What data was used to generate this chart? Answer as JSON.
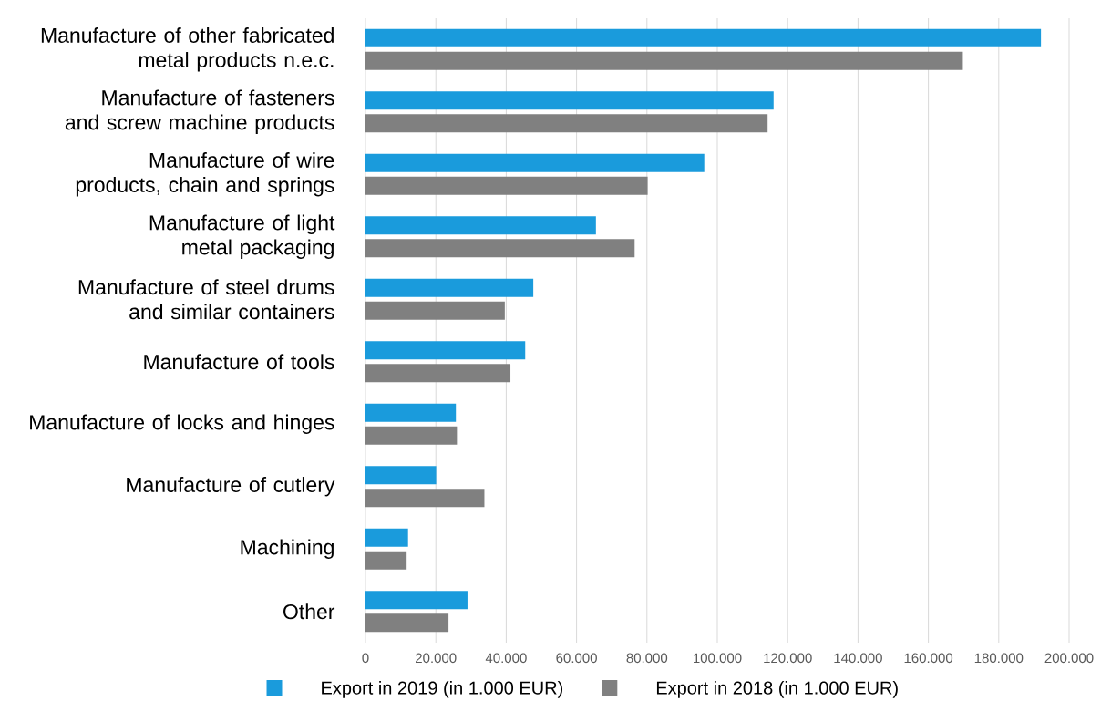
{
  "chart_data": {
    "type": "bar",
    "orientation": "horizontal",
    "categories": [
      "Manufacture of other fabricated metal products n.e.c.",
      "Manufacture of fasteners and screw machine products",
      "Manufacture of wire products, chain and springs",
      "Manufacture of light metal packaging",
      "Manufacture of steel drums and similar containers",
      "Manufacture of tools",
      "Manufacture of locks and hinges",
      "Manufacture of cutlery",
      "Machining",
      "Other"
    ],
    "series": [
      {
        "name": "Export in 2019 (in 1.000 EUR)",
        "color": "#1a9bdc",
        "values": [
          192000,
          116000,
          96300,
          65500,
          47700,
          45400,
          25700,
          20100,
          12100,
          29000
        ]
      },
      {
        "name": "Export in 2018 (in 1.000 EUR)",
        "color": "#808080",
        "values": [
          169800,
          114300,
          80200,
          76500,
          39600,
          41200,
          26000,
          33800,
          11700,
          23600
        ]
      }
    ],
    "xlim": [
      0,
      200000
    ],
    "xticks": [
      0,
      {
        "value": 20000,
        "label": "20.000"
      },
      {
        "value": 40000,
        "label": "40.000"
      },
      {
        "value": 60000,
        "label": "60.000"
      },
      {
        "value": 80000,
        "label": "80.000"
      },
      {
        "value": 100000,
        "label": "100.000"
      },
      {
        "value": 120000,
        "label": "120.000"
      },
      {
        "value": 140000,
        "label": "140.000"
      },
      {
        "value": 160000,
        "label": "160.000"
      },
      {
        "value": 180000,
        "label": "180.000"
      },
      {
        "value": 200000,
        "label": "200.000"
      }
    ],
    "grid": "x",
    "legend": "bottom"
  }
}
